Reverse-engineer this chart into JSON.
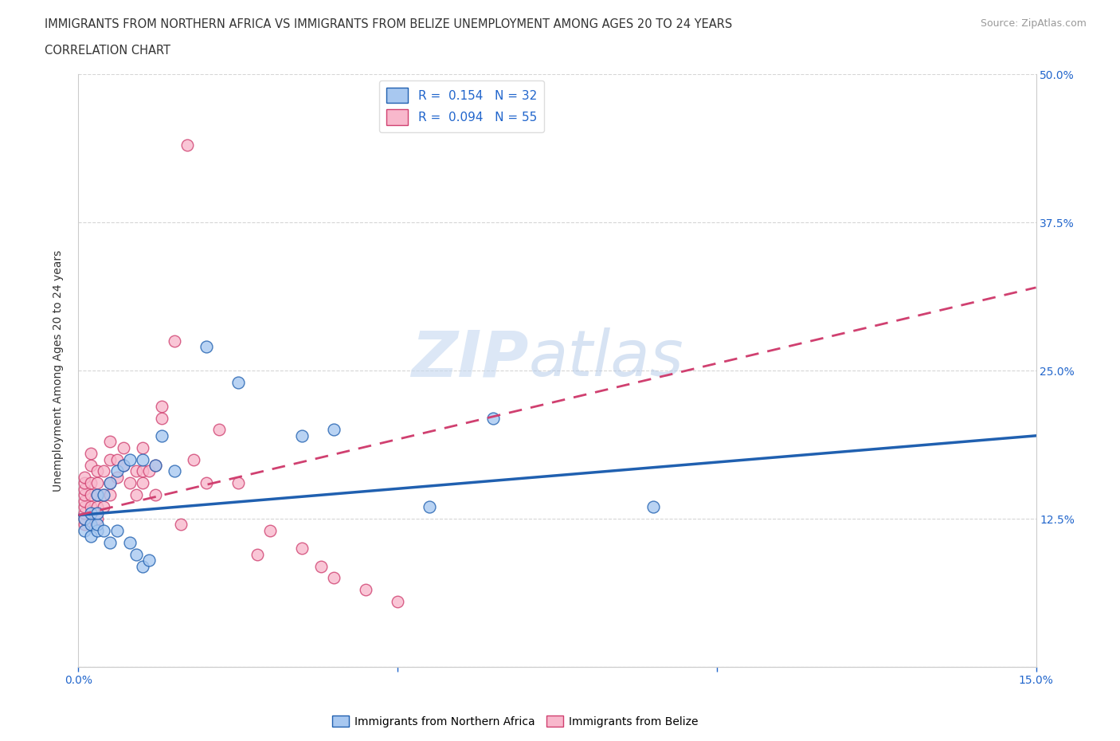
{
  "title_line1": "IMMIGRANTS FROM NORTHERN AFRICA VS IMMIGRANTS FROM BELIZE UNEMPLOYMENT AMONG AGES 20 TO 24 YEARS",
  "title_line2": "CORRELATION CHART",
  "source_text": "Source: ZipAtlas.com",
  "ylabel": "Unemployment Among Ages 20 to 24 years",
  "xlim": [
    0.0,
    0.15
  ],
  "ylim": [
    0.0,
    0.5
  ],
  "color_blue": "#a8c8f0",
  "color_blue_line": "#2060b0",
  "color_pink": "#f8b8cc",
  "color_pink_line": "#d04070",
  "legend_r1": "R =  0.154",
  "legend_n1": "N = 32",
  "legend_r2": "R =  0.094",
  "legend_n2": "N = 55",
  "label1": "Immigrants from Northern Africa",
  "label2": "Immigrants from Belize",
  "watermark": "ZIPatlas",
  "blue_trend_x0": 0.0,
  "blue_trend_y0": 0.128,
  "blue_trend_x1": 0.15,
  "blue_trend_y1": 0.195,
  "pink_trend_x0": 0.0,
  "pink_trend_y0": 0.128,
  "pink_trend_x1": 0.15,
  "pink_trend_y1": 0.32,
  "northern_africa_x": [
    0.001,
    0.001,
    0.002,
    0.002,
    0.002,
    0.003,
    0.003,
    0.003,
    0.003,
    0.004,
    0.004,
    0.005,
    0.005,
    0.006,
    0.006,
    0.007,
    0.008,
    0.008,
    0.009,
    0.01,
    0.01,
    0.011,
    0.012,
    0.013,
    0.015,
    0.02,
    0.025,
    0.035,
    0.04,
    0.055,
    0.065,
    0.09
  ],
  "northern_africa_y": [
    0.115,
    0.125,
    0.11,
    0.12,
    0.13,
    0.115,
    0.12,
    0.13,
    0.145,
    0.115,
    0.145,
    0.105,
    0.155,
    0.115,
    0.165,
    0.17,
    0.105,
    0.175,
    0.095,
    0.085,
    0.175,
    0.09,
    0.17,
    0.195,
    0.165,
    0.27,
    0.24,
    0.195,
    0.2,
    0.135,
    0.21,
    0.135
  ],
  "belize_x": [
    0.001,
    0.001,
    0.001,
    0.001,
    0.001,
    0.001,
    0.001,
    0.001,
    0.001,
    0.002,
    0.002,
    0.002,
    0.002,
    0.002,
    0.003,
    0.003,
    0.003,
    0.003,
    0.003,
    0.004,
    0.004,
    0.004,
    0.005,
    0.005,
    0.005,
    0.005,
    0.006,
    0.006,
    0.007,
    0.007,
    0.008,
    0.009,
    0.009,
    0.01,
    0.01,
    0.01,
    0.011,
    0.012,
    0.012,
    0.013,
    0.013,
    0.015,
    0.016,
    0.017,
    0.018,
    0.02,
    0.022,
    0.025,
    0.028,
    0.03,
    0.035,
    0.038,
    0.04,
    0.045,
    0.05
  ],
  "belize_y": [
    0.12,
    0.125,
    0.13,
    0.135,
    0.14,
    0.145,
    0.15,
    0.155,
    0.16,
    0.135,
    0.145,
    0.155,
    0.17,
    0.18,
    0.125,
    0.135,
    0.145,
    0.155,
    0.165,
    0.135,
    0.145,
    0.165,
    0.145,
    0.155,
    0.175,
    0.19,
    0.16,
    0.175,
    0.17,
    0.185,
    0.155,
    0.145,
    0.165,
    0.155,
    0.165,
    0.185,
    0.165,
    0.145,
    0.17,
    0.21,
    0.22,
    0.275,
    0.12,
    0.44,
    0.175,
    0.155,
    0.2,
    0.155,
    0.095,
    0.115,
    0.1,
    0.085,
    0.075,
    0.065,
    0.055
  ]
}
